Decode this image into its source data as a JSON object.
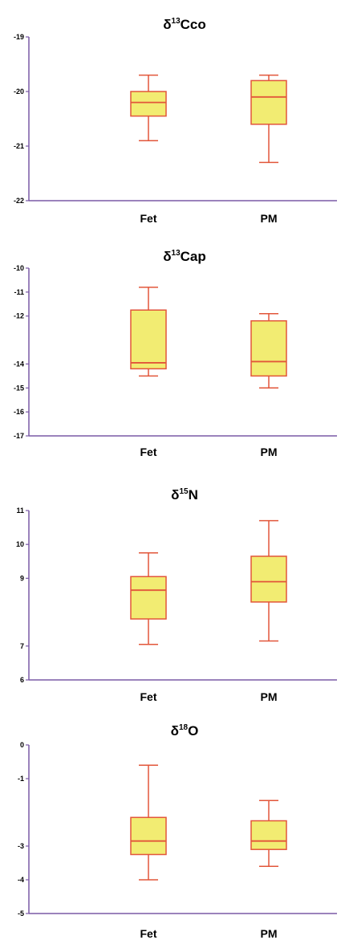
{
  "chart_data": [
    {
      "type": "box",
      "title": "δ13Cco",
      "title_parts": {
        "symbol": "δ",
        "sup": "13",
        "rest": "Cco"
      },
      "categories": [
        "Fet",
        "PM"
      ],
      "yticks": [
        "-19",
        "-20",
        "-21",
        "-22"
      ],
      "ylim": [
        -22,
        -19
      ],
      "boxes": [
        {
          "category": "Fet",
          "min": -20.9,
          "q1": -20.45,
          "median": -20.2,
          "q3": -20.0,
          "max": -19.7
        },
        {
          "category": "PM",
          "min": -21.3,
          "q1": -20.6,
          "median": -20.1,
          "q3": -19.8,
          "max": -19.7
        }
      ]
    },
    {
      "type": "box",
      "title": "δ13Cap",
      "title_parts": {
        "symbol": "δ",
        "sup": "13",
        "rest": "Cap"
      },
      "categories": [
        "Fet",
        "PM"
      ],
      "yticks": [
        "-10",
        "-11",
        "-12",
        "-14",
        "-15",
        "-16",
        "-17"
      ],
      "ylim": [
        -17,
        -10
      ],
      "boxes": [
        {
          "category": "Fet",
          "min": -14.5,
          "q1": -14.2,
          "median": -13.95,
          "q3": -11.75,
          "max": -10.8
        },
        {
          "category": "PM",
          "min": -15.0,
          "q1": -14.5,
          "median": -13.9,
          "q3": -12.2,
          "max": -11.9
        }
      ]
    },
    {
      "type": "box",
      "title": "δ15N",
      "title_parts": {
        "symbol": "δ",
        "sup": "15",
        "rest": "N"
      },
      "categories": [
        "Fet",
        "PM"
      ],
      "yticks": [
        "11",
        "10",
        "9",
        "7",
        "6"
      ],
      "ylim": [
        6,
        11
      ],
      "boxes": [
        {
          "category": "Fet",
          "min": 7.05,
          "q1": 7.8,
          "median": 8.65,
          "q3": 9.05,
          "max": 9.75
        },
        {
          "category": "PM",
          "min": 7.15,
          "q1": 8.3,
          "median": 8.9,
          "q3": 9.65,
          "max": 10.7
        }
      ]
    },
    {
      "type": "box",
      "title": "δ18O",
      "title_parts": {
        "symbol": "δ",
        "sup": "18",
        "rest": "O"
      },
      "categories": [
        "Fet",
        "PM"
      ],
      "yticks": [
        "0",
        "-1",
        "-3",
        "-4",
        "-5"
      ],
      "ylim": [
        -5,
        0
      ],
      "boxes": [
        {
          "category": "Fet",
          "min": -4.0,
          "q1": -3.25,
          "median": -2.85,
          "q3": -2.15,
          "max": -0.6
        },
        {
          "category": "PM",
          "min": -3.6,
          "q1": -3.1,
          "median": -2.85,
          "q3": -2.25,
          "max": -1.65
        }
      ]
    }
  ]
}
